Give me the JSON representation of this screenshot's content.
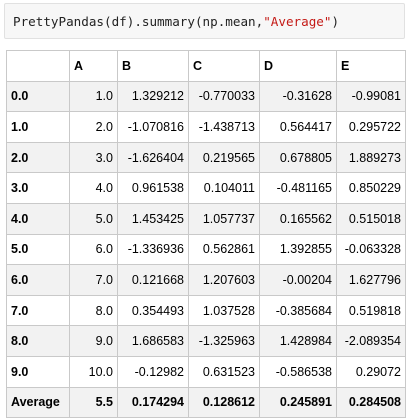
{
  "code": {
    "prefix": "PrettyPandas(df).summary(np.mean, ",
    "string_arg": "\"Average\"",
    "suffix": ")"
  },
  "table": {
    "columns": [
      "",
      "A",
      "B",
      "C",
      "D",
      "E"
    ],
    "rows": [
      {
        "index": "0.0",
        "values": [
          "1.0",
          "1.329212",
          "-0.770033",
          "-0.31628",
          "-0.99081"
        ]
      },
      {
        "index": "1.0",
        "values": [
          "2.0",
          "-1.070816",
          "-1.438713",
          "0.564417",
          "0.295722"
        ]
      },
      {
        "index": "2.0",
        "values": [
          "3.0",
          "-1.626404",
          "0.219565",
          "0.678805",
          "1.889273"
        ]
      },
      {
        "index": "3.0",
        "values": [
          "4.0",
          "0.961538",
          "0.104011",
          "-0.481165",
          "0.850229"
        ]
      },
      {
        "index": "4.0",
        "values": [
          "5.0",
          "1.453425",
          "1.057737",
          "0.165562",
          "0.515018"
        ]
      },
      {
        "index": "5.0",
        "values": [
          "6.0",
          "-1.336936",
          "0.562861",
          "1.392855",
          "-0.063328"
        ]
      },
      {
        "index": "6.0",
        "values": [
          "7.0",
          "0.121668",
          "1.207603",
          "-0.00204",
          "1.627796"
        ]
      },
      {
        "index": "7.0",
        "values": [
          "8.0",
          "0.354493",
          "1.037528",
          "-0.385684",
          "0.519818"
        ]
      },
      {
        "index": "8.0",
        "values": [
          "9.0",
          "1.686583",
          "-1.325963",
          "1.428984",
          "-2.089354"
        ]
      },
      {
        "index": "9.0",
        "values": [
          "10.0",
          "-0.12982",
          "0.631523",
          "-0.586538",
          "0.29072"
        ]
      }
    ],
    "summary": {
      "index": "Average",
      "values": [
        "5.5",
        "0.174294",
        "0.128612",
        "0.245891",
        "0.284508"
      ]
    }
  }
}
